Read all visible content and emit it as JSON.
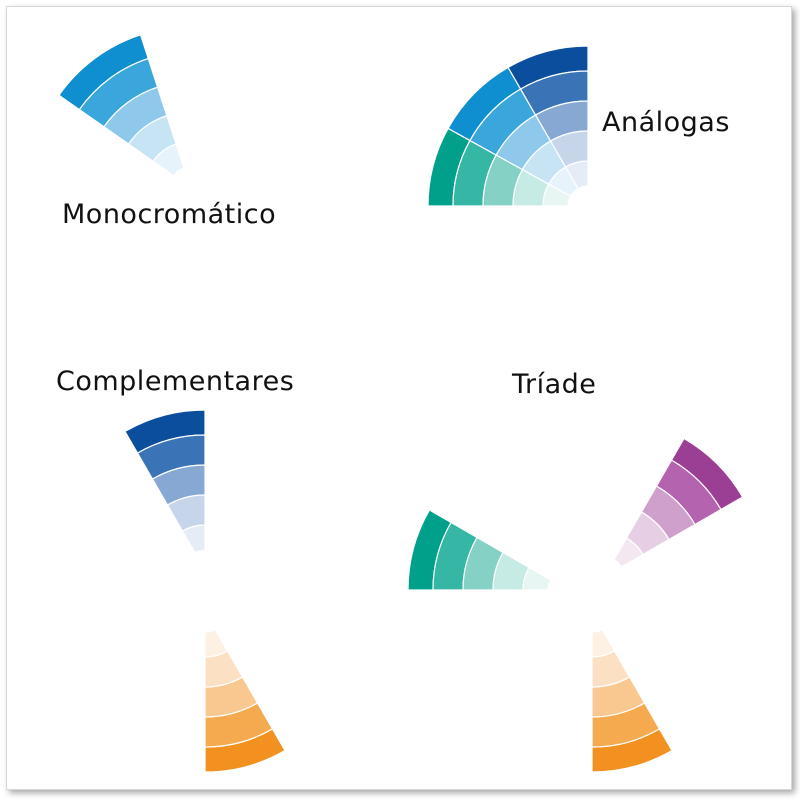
{
  "panels": [
    {
      "id": "mono",
      "label": "Monocromático"
    },
    {
      "id": "anal",
      "label": "Análogas"
    },
    {
      "id": "comp",
      "label": "Complementares"
    },
    {
      "id": "tri",
      "label": "Tríade"
    }
  ],
  "palettes": {
    "blue_light": [
      "#0f8fd0",
      "#3aa6dc",
      "#8ec8ea",
      "#c7e4f5",
      "#e6f3fb"
    ],
    "blue_dark": [
      "#0b4e9e",
      "#3a74b6",
      "#86a8d2",
      "#c6d5ea",
      "#e5ecf6"
    ],
    "teal": [
      "#00a08a",
      "#36b7a5",
      "#85d1c6",
      "#c6ebe5",
      "#e7f6f3"
    ],
    "purple": [
      "#9b3f95",
      "#b463ae",
      "#cfa0cb",
      "#e6cfe4",
      "#f3e8f2"
    ],
    "orange": [
      "#f39120",
      "#f6aa50",
      "#f9c890",
      "#fce0c3",
      "#fdf1e4"
    ]
  }
}
